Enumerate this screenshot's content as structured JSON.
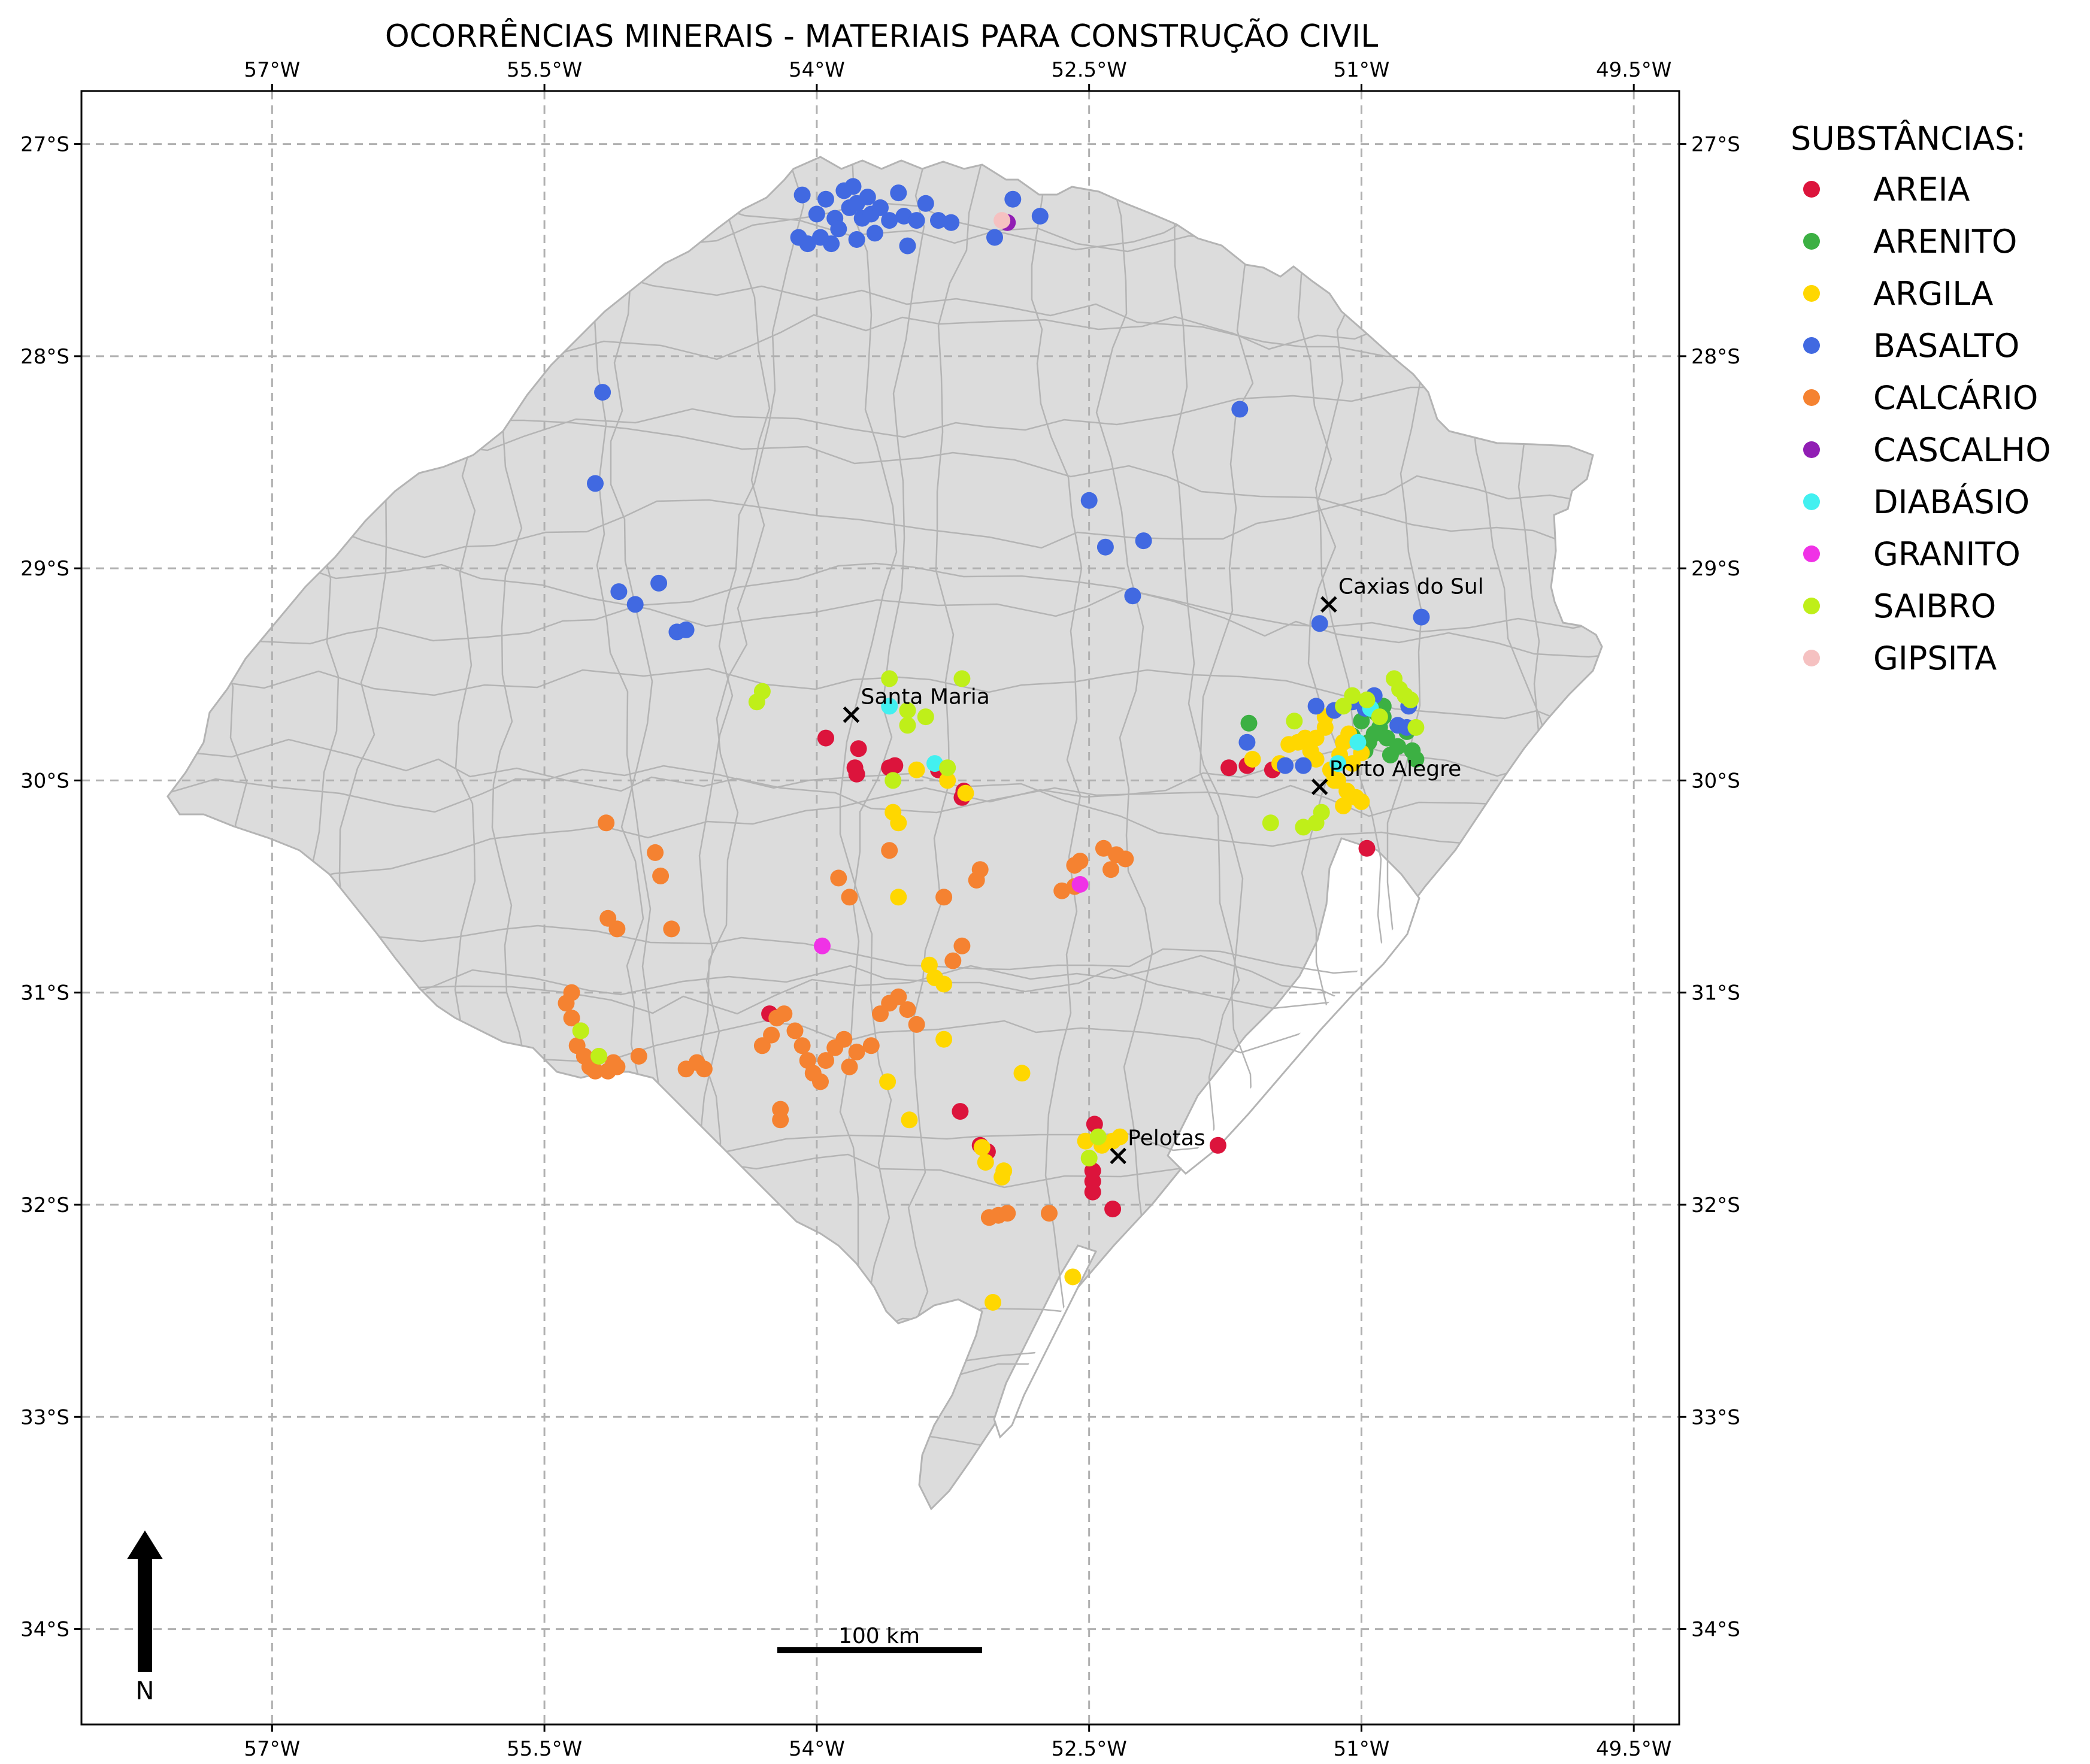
{
  "title": "OCORRÊNCIAS MINERAIS - MATERIAIS PARA CONSTRUÇÃO CIVIL",
  "lon_ticks": [
    "57°W",
    "55.5°W",
    "54°W",
    "52.5°W",
    "51°W",
    "49.5°W"
  ],
  "lat_ticks": [
    "27°S",
    "28°S",
    "29°S",
    "30°S",
    "31°S",
    "32°S",
    "33°S",
    "34°S"
  ],
  "map_extent": {
    "lon": [
      -58.05,
      -49.25
    ],
    "lat": [
      -34.45,
      -26.75
    ]
  },
  "grid": true,
  "colors": {
    "land": "#dcdcdc",
    "boundary": "#b4b4b4",
    "frame": "#000000"
  },
  "north_arrow": {
    "label": "N"
  },
  "scale_bar": {
    "label": "100 km",
    "length_km": 100
  },
  "cities": [
    {
      "name": "Caxias do Sul",
      "lon": -51.18,
      "lat": -29.17
    },
    {
      "name": "Santa Maria",
      "lon": -53.81,
      "lat": -29.69
    },
    {
      "name": "Porto Alegre",
      "lon": -51.23,
      "lat": -30.03
    },
    {
      "name": "Pelotas",
      "lon": -52.34,
      "lat": -31.77
    }
  ],
  "legend": {
    "title": "SUBSTÂNCIAS:",
    "placement": "outside-right",
    "items": [
      {
        "label": "AREIA",
        "color": "#dc143c"
      },
      {
        "label": "ARENITO",
        "color": "#3cb043"
      },
      {
        "label": "ARGILA",
        "color": "#ffd700"
      },
      {
        "label": "BASALTO",
        "color": "#4169e1"
      },
      {
        "label": "CALCÁRIO",
        "color": "#f58231"
      },
      {
        "label": "CASCALHO",
        "color": "#911eb4"
      },
      {
        "label": "DIABÁSIO",
        "color": "#42f0f0"
      },
      {
        "label": "GRANITO",
        "color": "#f032e6"
      },
      {
        "label": "SAIBRO",
        "color": "#bfef19"
      },
      {
        "label": "GIPSITA",
        "color": "#f5c1c1"
      }
    ]
  },
  "chart_data": {
    "type": "scatter",
    "title": "OCORRÊNCIAS MINERAIS - MATERIAIS PARA CONSTRUÇÃO CIVIL",
    "xlim": [
      -58.05,
      -49.25
    ],
    "ylim": [
      -34.45,
      -26.75
    ],
    "series": [
      {
        "name": "AREIA",
        "points": [
          [
            -53.95,
            -29.8
          ],
          [
            -53.77,
            -29.85
          ],
          [
            -53.79,
            -29.94
          ],
          [
            -53.78,
            -29.97
          ],
          [
            -53.6,
            -29.94
          ],
          [
            -53.57,
            -29.93
          ],
          [
            -53.33,
            -29.95
          ],
          [
            -53.19,
            -30.05
          ],
          [
            -53.2,
            -30.08
          ],
          [
            -51.73,
            -29.94
          ],
          [
            -51.63,
            -29.93
          ],
          [
            -51.49,
            -29.95
          ],
          [
            -50.97,
            -30.32
          ],
          [
            -54.26,
            -31.1
          ],
          [
            -53.21,
            -31.56
          ],
          [
            -53.1,
            -31.72
          ],
          [
            -52.47,
            -31.62
          ],
          [
            -52.48,
            -31.84
          ],
          [
            -52.48,
            -31.89
          ],
          [
            -52.48,
            -31.94
          ],
          [
            -52.37,
            -32.02
          ],
          [
            -51.79,
            -31.72
          ],
          [
            -53.06,
            -31.75
          ]
        ]
      },
      {
        "name": "ARENITO",
        "points": [
          [
            -51.62,
            -29.73
          ],
          [
            -51.0,
            -29.72
          ],
          [
            -50.96,
            -29.82
          ],
          [
            -50.93,
            -29.78
          ],
          [
            -50.9,
            -29.75
          ],
          [
            -50.88,
            -29.7
          ],
          [
            -50.86,
            -29.8
          ],
          [
            -50.84,
            -29.88
          ],
          [
            -50.8,
            -29.84
          ],
          [
            -50.75,
            -29.77
          ],
          [
            -50.72,
            -29.86
          ],
          [
            -50.7,
            -29.9
          ],
          [
            -50.98,
            -29.86
          ],
          [
            -51.05,
            -29.79
          ],
          [
            -50.92,
            -29.68
          ],
          [
            -50.88,
            -29.65
          ]
        ]
      },
      {
        "name": "ARGILA",
        "points": [
          [
            -53.58,
            -30.15
          ],
          [
            -53.55,
            -30.2
          ],
          [
            -53.55,
            -30.55
          ],
          [
            -53.38,
            -30.87
          ],
          [
            -53.35,
            -30.93
          ],
          [
            -53.3,
            -30.96
          ],
          [
            -53.3,
            -31.22
          ],
          [
            -53.61,
            -31.42
          ],
          [
            -53.49,
            -31.6
          ],
          [
            -53.28,
            -30.0
          ],
          [
            -53.18,
            -30.06
          ],
          [
            -53.45,
            -29.95
          ],
          [
            -52.87,
            -31.38
          ],
          [
            -53.09,
            -31.73
          ],
          [
            -53.07,
            -31.8
          ],
          [
            -52.97,
            -31.84
          ],
          [
            -52.98,
            -31.87
          ],
          [
            -52.52,
            -31.7
          ],
          [
            -52.43,
            -31.72
          ],
          [
            -52.37,
            -31.7
          ],
          [
            -52.33,
            -31.68
          ],
          [
            -52.59,
            -32.34
          ],
          [
            -53.03,
            -32.46
          ],
          [
            -51.4,
            -29.83
          ],
          [
            -51.35,
            -29.82
          ],
          [
            -51.31,
            -29.8
          ],
          [
            -51.28,
            -29.86
          ],
          [
            -51.25,
            -29.9
          ],
          [
            -51.2,
            -29.75
          ],
          [
            -51.17,
            -29.95
          ],
          [
            -51.15,
            -30.0
          ],
          [
            -51.12,
            -29.88
          ],
          [
            -51.1,
            -29.82
          ],
          [
            -51.07,
            -29.78
          ],
          [
            -51.05,
            -29.92
          ],
          [
            -51.0,
            -29.87
          ],
          [
            -51.03,
            -30.08
          ],
          [
            -51.1,
            -30.12
          ],
          [
            -51.0,
            -30.1
          ],
          [
            -51.2,
            -29.7
          ],
          [
            -51.25,
            -29.8
          ],
          [
            -51.45,
            -29.92
          ],
          [
            -51.6,
            -29.9
          ],
          [
            -51.13,
            -30.0
          ],
          [
            -51.08,
            -30.05
          ]
        ]
      },
      {
        "name": "BASALTO",
        "points": [
          [
            -54.08,
            -27.24
          ],
          [
            -54.0,
            -27.33
          ],
          [
            -53.95,
            -27.26
          ],
          [
            -53.9,
            -27.35
          ],
          [
            -53.85,
            -27.22
          ],
          [
            -53.82,
            -27.3
          ],
          [
            -53.8,
            -27.2
          ],
          [
            -53.78,
            -27.28
          ],
          [
            -53.75,
            -27.35
          ],
          [
            -53.72,
            -27.25
          ],
          [
            -53.7,
            -27.33
          ],
          [
            -53.68,
            -27.42
          ],
          [
            -53.65,
            -27.3
          ],
          [
            -53.6,
            -27.36
          ],
          [
            -53.55,
            -27.23
          ],
          [
            -53.52,
            -27.34
          ],
          [
            -53.5,
            -27.48
          ],
          [
            -53.45,
            -27.36
          ],
          [
            -53.4,
            -27.28
          ],
          [
            -53.88,
            -27.4
          ],
          [
            -53.92,
            -27.47
          ],
          [
            -53.98,
            -27.44
          ],
          [
            -54.05,
            -27.47
          ],
          [
            -54.1,
            -27.44
          ],
          [
            -53.78,
            -27.45
          ],
          [
            -53.33,
            -27.36
          ],
          [
            -53.26,
            -27.37
          ],
          [
            -53.02,
            -27.44
          ],
          [
            -52.92,
            -27.26
          ],
          [
            -52.77,
            -27.34
          ],
          [
            -55.18,
            -28.17
          ],
          [
            -55.22,
            -28.6
          ],
          [
            -55.09,
            -29.11
          ],
          [
            -55.0,
            -29.17
          ],
          [
            -54.87,
            -29.07
          ],
          [
            -54.77,
            -29.3
          ],
          [
            -54.72,
            -29.29
          ],
          [
            -52.5,
            -28.68
          ],
          [
            -52.41,
            -28.9
          ],
          [
            -52.2,
            -28.87
          ],
          [
            -52.26,
            -29.13
          ],
          [
            -51.67,
            -28.25
          ],
          [
            -51.23,
            -29.26
          ],
          [
            -50.67,
            -29.23
          ],
          [
            -51.25,
            -29.65
          ],
          [
            -51.15,
            -29.67
          ],
          [
            -51.05,
            -29.63
          ],
          [
            -50.98,
            -29.66
          ],
          [
            -50.93,
            -29.6
          ],
          [
            -50.8,
            -29.74
          ],
          [
            -50.74,
            -29.65
          ],
          [
            -50.75,
            -29.75
          ],
          [
            -51.63,
            -29.82
          ],
          [
            -51.42,
            -29.93
          ],
          [
            -51.32,
            -29.93
          ]
        ]
      },
      {
        "name": "CALCÁRIO",
        "points": [
          [
            -55.16,
            -30.2
          ],
          [
            -54.89,
            -30.34
          ],
          [
            -54.86,
            -30.45
          ],
          [
            -54.8,
            -30.7
          ],
          [
            -55.1,
            -30.7
          ],
          [
            -55.15,
            -30.65
          ],
          [
            -55.35,
            -31.0
          ],
          [
            -55.38,
            -31.05
          ],
          [
            -55.35,
            -31.12
          ],
          [
            -55.3,
            -31.18
          ],
          [
            -55.32,
            -31.25
          ],
          [
            -55.28,
            -31.3
          ],
          [
            -55.25,
            -31.35
          ],
          [
            -55.22,
            -31.37
          ],
          [
            -55.2,
            -31.3
          ],
          [
            -55.12,
            -31.33
          ],
          [
            -55.15,
            -31.37
          ],
          [
            -55.1,
            -31.35
          ],
          [
            -54.98,
            -31.3
          ],
          [
            -54.72,
            -31.36
          ],
          [
            -54.66,
            -31.33
          ],
          [
            -54.62,
            -31.36
          ],
          [
            -54.3,
            -31.25
          ],
          [
            -54.25,
            -31.2
          ],
          [
            -54.22,
            -31.12
          ],
          [
            -54.18,
            -31.1
          ],
          [
            -54.12,
            -31.18
          ],
          [
            -54.08,
            -31.25
          ],
          [
            -54.05,
            -31.32
          ],
          [
            -54.02,
            -31.38
          ],
          [
            -53.98,
            -31.42
          ],
          [
            -53.95,
            -31.32
          ],
          [
            -53.9,
            -31.26
          ],
          [
            -53.85,
            -31.22
          ],
          [
            -53.82,
            -31.35
          ],
          [
            -53.78,
            -31.28
          ],
          [
            -53.7,
            -31.25
          ],
          [
            -53.65,
            -31.1
          ],
          [
            -53.6,
            -31.05
          ],
          [
            -53.55,
            -31.02
          ],
          [
            -53.5,
            -31.08
          ],
          [
            -53.45,
            -31.15
          ],
          [
            -54.2,
            -31.55
          ],
          [
            -54.2,
            -31.6
          ],
          [
            -53.88,
            -30.46
          ],
          [
            -53.82,
            -30.55
          ],
          [
            -53.6,
            -30.33
          ],
          [
            -53.3,
            -30.55
          ],
          [
            -53.1,
            -30.42
          ],
          [
            -53.12,
            -30.47
          ],
          [
            -53.2,
            -30.78
          ],
          [
            -53.25,
            -30.85
          ],
          [
            -52.58,
            -30.4
          ],
          [
            -52.58,
            -30.5
          ],
          [
            -52.55,
            -30.38
          ],
          [
            -52.42,
            -30.32
          ],
          [
            -52.35,
            -30.35
          ],
          [
            -52.38,
            -30.42
          ],
          [
            -52.3,
            -30.37
          ],
          [
            -52.65,
            -30.52
          ],
          [
            -53.05,
            -32.06
          ],
          [
            -53.0,
            -32.05
          ],
          [
            -52.95,
            -32.04
          ],
          [
            -52.72,
            -32.04
          ]
        ]
      },
      {
        "name": "CASCALHO",
        "points": [
          [
            -52.95,
            -27.37
          ]
        ]
      },
      {
        "name": "DIABÁSIO",
        "points": [
          [
            -53.6,
            -29.65
          ],
          [
            -53.35,
            -29.92
          ],
          [
            -51.13,
            -29.92
          ],
          [
            -50.95,
            -29.66
          ],
          [
            -51.02,
            -29.82
          ]
        ]
      },
      {
        "name": "GRANITO",
        "points": [
          [
            -53.97,
            -30.78
          ],
          [
            -52.55,
            -30.49
          ]
        ]
      },
      {
        "name": "SAIBRO",
        "points": [
          [
            -54.33,
            -29.63
          ],
          [
            -54.3,
            -29.58
          ],
          [
            -53.6,
            -29.52
          ],
          [
            -53.2,
            -29.52
          ],
          [
            -53.5,
            -29.67
          ],
          [
            -53.4,
            -29.7
          ],
          [
            -53.5,
            -29.74
          ],
          [
            -53.58,
            -30.0
          ],
          [
            -53.28,
            -29.94
          ],
          [
            -55.2,
            -31.3
          ],
          [
            -55.3,
            -31.18
          ],
          [
            -52.5,
            -31.78
          ],
          [
            -52.45,
            -31.68
          ],
          [
            -51.37,
            -29.72
          ],
          [
            -51.05,
            -29.6
          ],
          [
            -50.97,
            -29.62
          ],
          [
            -50.9,
            -29.7
          ],
          [
            -50.82,
            -29.52
          ],
          [
            -50.79,
            -29.57
          ],
          [
            -50.76,
            -29.6
          ],
          [
            -50.73,
            -29.62
          ],
          [
            -50.7,
            -29.75
          ],
          [
            -51.1,
            -29.65
          ],
          [
            -51.32,
            -30.22
          ],
          [
            -51.25,
            -30.2
          ],
          [
            -51.22,
            -30.15
          ],
          [
            -51.5,
            -30.2
          ]
        ]
      },
      {
        "name": "GIPSITA",
        "points": [
          [
            -52.98,
            -27.36
          ]
        ]
      }
    ]
  }
}
